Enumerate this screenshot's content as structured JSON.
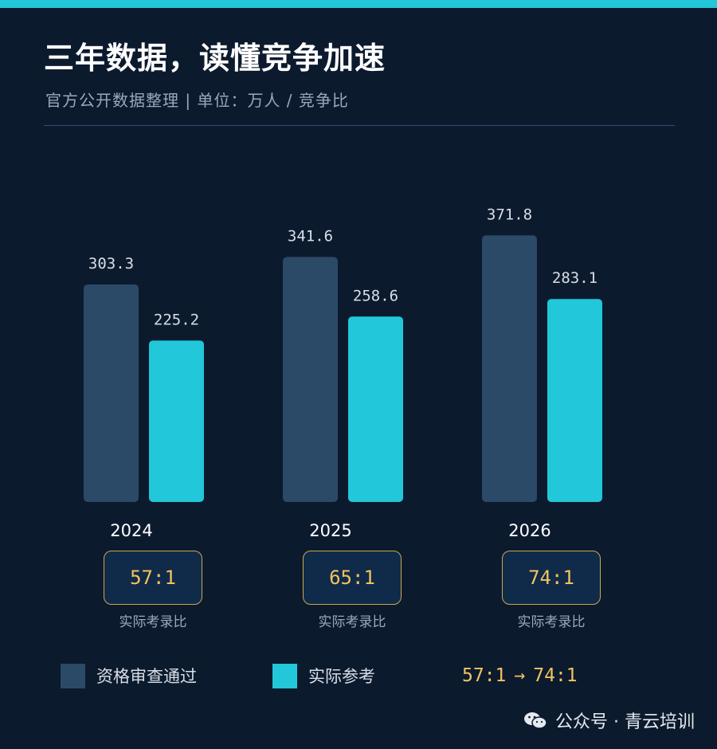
{
  "header": {
    "title": "三年数据，读懂竞争加速",
    "subtitle": "官方公开数据整理 | 单位：万人 / 竞争比"
  },
  "chart_data": {
    "type": "bar",
    "categories": [
      "2024",
      "2025",
      "2026"
    ],
    "series": [
      {
        "name": "资格审查通过",
        "values": [
          303.3,
          341.6,
          371.8
        ],
        "color": "#2b4a68"
      },
      {
        "name": "实际参考",
        "values": [
          225.2,
          258.6,
          283.1
        ],
        "color": "#22c7d9"
      }
    ],
    "value_labels": [
      [
        "303.3",
        "341.6",
        "371.8"
      ],
      [
        "225.2",
        "258.6",
        "283.1"
      ]
    ],
    "ratios": [
      "57:1",
      "65:1",
      "74:1"
    ],
    "ratio_label": "实际考录比",
    "grid": false,
    "legend": "bottom"
  },
  "trend": {
    "from": "57:1",
    "arrow": "→",
    "to": "74:1"
  },
  "watermark": {
    "text": "公众号 · 青云培训",
    "icon": "wechat-icon"
  },
  "colors": {
    "background": "#0c1a2e",
    "accent": "#22c7d9",
    "gold": "#f1c35e",
    "bar_dark": "#2b4a68"
  }
}
